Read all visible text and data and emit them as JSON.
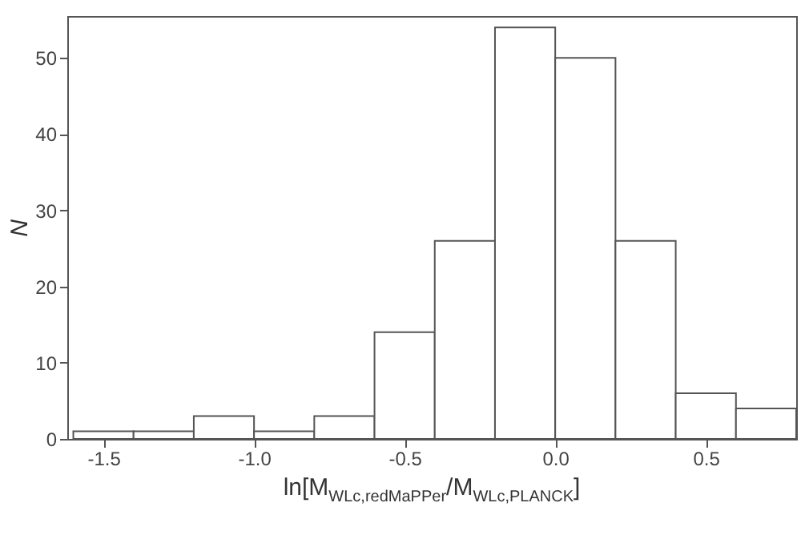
{
  "chart_data": {
    "type": "histogram",
    "xlabel": "ln[M$_{WLc,redMaPPer}$/M$_{WLc,PLANCK}$]",
    "ylabel": "N",
    "bins": [
      -1.6,
      -1.4,
      -1.2,
      -1.0,
      -0.8,
      -0.6,
      -0.4,
      -0.2,
      0.0,
      0.2,
      0.4,
      0.6,
      0.8
    ],
    "values": [
      1,
      1,
      3,
      1,
      3,
      14,
      26,
      54,
      50,
      26,
      6,
      4
    ],
    "color": "#ffffff",
    "xlim": [
      -1.62,
      0.8
    ],
    "ylim": [
      0,
      55.5
    ],
    "xticks": [
      {
        "value": -1.5,
        "label": "-1.5"
      },
      {
        "value": -1.0,
        "label": "-1.0"
      },
      {
        "value": -0.5,
        "label": "-0.5"
      },
      {
        "value": 0,
        "label": "0.0"
      },
      {
        "value": 0.5,
        "label": "0.5"
      }
    ],
    "yticks": [
      0,
      10,
      20,
      30,
      40,
      50
    ]
  }
}
